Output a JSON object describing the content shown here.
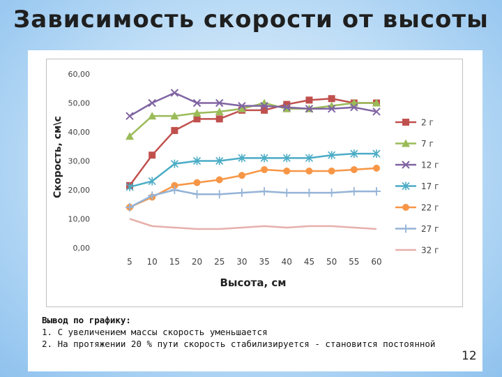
{
  "slide": {
    "title": "Зависимость скорости от высоты",
    "page_number": "12"
  },
  "conclusion": {
    "heading": "Вывод по графику:",
    "items": [
      "1. С увеличением массы скорость уменьшается",
      "2. На протяжении 20 % пути скорость стабилизируется - становится постоянной"
    ]
  },
  "chart_data": {
    "type": "line",
    "title": "",
    "xlabel": "Высота, см",
    "ylabel": "Скорость, см\\с",
    "categories": [
      "5",
      "10",
      "15",
      "20",
      "25",
      "30",
      "35",
      "40",
      "45",
      "50",
      "55",
      "60"
    ],
    "y_ticks": [
      "0,00",
      "10,00",
      "20,00",
      "30,00",
      "40,00",
      "50,00",
      "60,00"
    ],
    "ylim": [
      0,
      60
    ],
    "grid": false,
    "legend_position": "right",
    "series": [
      {
        "name": "2 г",
        "color": "#c0504d",
        "marker": "square",
        "values": [
          21.5,
          32,
          40.5,
          44.5,
          44.5,
          47.5,
          47.5,
          49.5,
          51,
          51.5,
          50,
          50
        ]
      },
      {
        "name": "7 г",
        "color": "#9bbb59",
        "marker": "triangle",
        "values": [
          38.5,
          45.5,
          45.5,
          46.5,
          47,
          48,
          50,
          48,
          48,
          49,
          50,
          50
        ]
      },
      {
        "name": "12 г",
        "color": "#8064a2",
        "marker": "x",
        "values": [
          45.5,
          50,
          53.5,
          50,
          50,
          49,
          49,
          48.5,
          48,
          48,
          48.5,
          47
        ]
      },
      {
        "name": "17 г",
        "color": "#4bacc6",
        "marker": "star",
        "values": [
          21,
          23,
          29,
          30,
          30,
          31,
          31,
          31,
          31,
          32,
          32.5,
          32.5
        ]
      },
      {
        "name": "22 г",
        "color": "#f79646",
        "marker": "circle",
        "values": [
          14,
          17.5,
          21.5,
          22.5,
          23.5,
          25,
          27,
          26.5,
          26.5,
          26.5,
          27,
          27.5
        ]
      },
      {
        "name": "27 г",
        "color": "#95b3d7",
        "marker": "plus",
        "values": [
          14,
          18,
          20,
          18.5,
          18.5,
          19,
          19.5,
          19,
          19,
          19,
          19.5,
          19.5
        ]
      },
      {
        "name": "32 г",
        "color": "#e6b0ab",
        "marker": "none",
        "values": [
          10,
          7.5,
          7,
          6.5,
          6.5,
          7,
          7.5,
          7,
          7.5,
          7.5,
          7,
          6.5
        ]
      }
    ]
  }
}
